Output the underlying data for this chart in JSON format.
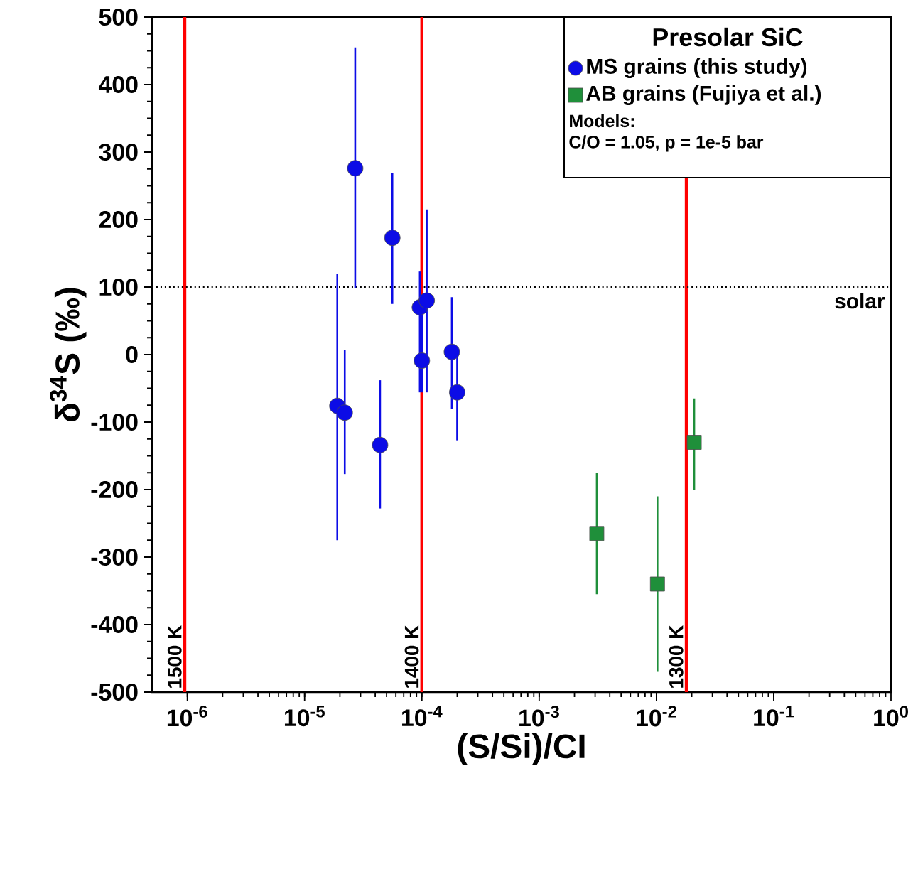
{
  "chart_data": {
    "type": "scatter",
    "xlabel": "(S/Si)/CI",
    "ylabel": "δ$^{34}$S (‰)",
    "legend_title": "Presolar SiC",
    "legend": "top right",
    "log": "x",
    "xlim": [
      5e-07,
      1
    ],
    "ylim": [
      -500,
      500
    ],
    "xticks": [
      {
        "value": 1e-06,
        "label": "10$^{-6}$"
      },
      {
        "value": 1e-05,
        "label": "10$^{-5}$"
      },
      {
        "value": 0.0001,
        "label": "10$^{-4}$"
      },
      {
        "value": 0.001,
        "label": "10$^{-3}$"
      },
      {
        "value": 0.01,
        "label": "10$^{-2}$"
      },
      {
        "value": 0.1,
        "label": "10$^{-1}$"
      },
      {
        "value": 1,
        "label": "10$^{0}$"
      }
    ],
    "yticks": [
      -500,
      -400,
      -300,
      -200,
      -100,
      0,
      100,
      200,
      300,
      400,
      500
    ],
    "series": [
      {
        "name": "MS grains (this study)",
        "color": "#0c0ce6",
        "marker": "circle",
        "x": [
          2.7e-05,
          5.6e-05,
          1.9e-05,
          2.2e-05,
          4.4e-05,
          9.6e-05,
          0.00011,
          0.0001,
          0.00018,
          0.0002
        ],
        "values": [
          276,
          173,
          -76,
          -86,
          -134,
          70,
          80,
          -9,
          4,
          -56
        ],
        "errors": [
          [
            98,
            455
          ],
          [
            75,
            269
          ],
          [
            -275,
            120
          ],
          [
            -177,
            7
          ],
          [
            -228,
            -38
          ],
          [
            -56,
            123
          ],
          [
            -56,
            215
          ],
          [
            -56,
            60
          ],
          [
            -81,
            85
          ],
          [
            -127,
            10
          ]
        ]
      },
      {
        "name": "AB grains (Fujiya et al.)",
        "color": "#1f8f3a",
        "marker": "square",
        "x": [
          0.0031,
          0.0102,
          0.021
        ],
        "values": [
          -265,
          -340,
          -130
        ],
        "errors": [
          [
            -355,
            -175
          ],
          [
            -470,
            -210
          ],
          [
            -200,
            -65
          ]
        ]
      }
    ],
    "ref_lines": [
      {
        "axis": "x",
        "value": 9.5e-07,
        "label": "1500 K",
        "color": "#ff0000",
        "line_style": "solid"
      },
      {
        "axis": "x",
        "value": 0.0001,
        "label": "1400 K",
        "color": "#ff0000",
        "line_style": "solid"
      },
      {
        "axis": "x",
        "value": 0.018,
        "label": "1300 K",
        "color": "#ff0000",
        "line_style": "solid"
      },
      {
        "axis": "y",
        "value": 100,
        "label": "solar",
        "color": "#000000",
        "line_style": "dotted"
      }
    ],
    "annotations": [
      "Models:",
      "C/O = 1.05, p = 1e-5 bar"
    ]
  }
}
